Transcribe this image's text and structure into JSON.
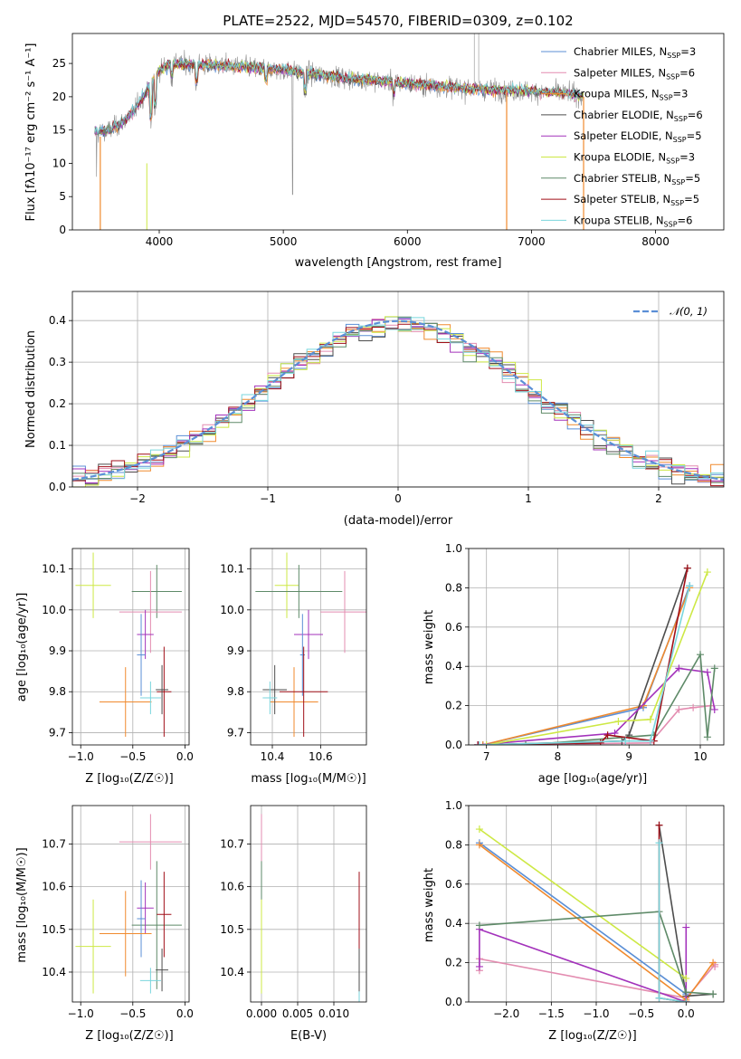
{
  "colors": {
    "Chabrier MILES": "#5b8fd6",
    "Salpeter MILES": "#e38cb0",
    "Kroupa MILES": "#f08a2e",
    "Chabrier ELODIE": "#4d4d4d",
    "Salpeter ELODIE": "#a332bb",
    "Kroupa ELODIE": "#cde844",
    "Chabrier STELIB": "#5e8a68",
    "Salpeter STELIB": "#a10f18",
    "Kroupa STELIB": "#79d6dd"
  },
  "chart_data": [
    {
      "id": "spectrum",
      "type": "line",
      "title": "PLATE=2522, MJD=54570, FIBERID=0309, z=0.102",
      "xlabel": "wavelength [Angstrom, rest frame]",
      "ylabel": "Flux [fλ10⁻¹⁷ erg cm⁻² s⁻¹ A⁻¹]",
      "xlim": [
        3300,
        8550
      ],
      "ylim": [
        0,
        29.5
      ],
      "xticks": [
        4000,
        5000,
        6000,
        7000,
        8000
      ],
      "yticks": [
        0,
        5,
        10,
        15,
        20,
        25
      ],
      "data_color": "#8c8c8c",
      "continuum": [
        [
          3480,
          14.5
        ],
        [
          3600,
          15
        ],
        [
          3700,
          16
        ],
        [
          3800,
          18
        ],
        [
          3900,
          21
        ],
        [
          4000,
          24
        ],
        [
          4100,
          25
        ],
        [
          4300,
          24.8
        ],
        [
          4600,
          24.6
        ],
        [
          5000,
          24.0
        ],
        [
          5500,
          22.8
        ],
        [
          6000,
          22.0
        ],
        [
          6500,
          21.2
        ],
        [
          7000,
          20.8
        ],
        [
          7400,
          20.3
        ]
      ],
      "legend": [
        {
          "label": "Chabrier MILES, N",
          "sub": "SSP",
          "rest": "=3",
          "color": "#5b8fd6"
        },
        {
          "label": "Salpeter MILES, N",
          "sub": "SSP",
          "rest": "=6",
          "color": "#e38cb0"
        },
        {
          "label": "Kroupa MILES, N",
          "sub": "SSP",
          "rest": "=3",
          "color": "#f08a2e"
        },
        {
          "label": "Chabrier ELODIE, N",
          "sub": "SSP",
          "rest": "=6",
          "color": "#4d4d4d"
        },
        {
          "label": "Salpeter ELODIE, N",
          "sub": "SSP",
          "rest": "=5",
          "color": "#a332bb"
        },
        {
          "label": "Kroupa ELODIE, N",
          "sub": "SSP",
          "rest": "=3",
          "color": "#cde844"
        },
        {
          "label": "Chabrier STELIB, N",
          "sub": "SSP",
          "rest": "=5",
          "color": "#5e8a68"
        },
        {
          "label": "Salpeter STELIB, N",
          "sub": "SSP",
          "rest": "=5",
          "color": "#a10f18"
        },
        {
          "label": "Kroupa STELIB, N",
          "sub": "SSP",
          "rest": "=6",
          "color": "#79d6dd"
        }
      ],
      "legend_placement": "top-right",
      "grid": false
    },
    {
      "id": "histogram",
      "type": "step",
      "xlabel": "(data-model)/error",
      "ylabel": "Normed distribution",
      "xlim": [
        -2.5,
        2.5
      ],
      "ylim": [
        0,
        0.47
      ],
      "xticks": [
        -2,
        -1,
        0,
        1,
        2
      ],
      "yticks": [
        0.0,
        0.1,
        0.2,
        0.3,
        0.4
      ],
      "bin_width": 0.1,
      "gaussian_label": "𝒩(0, 1)",
      "gaussian_color": "#5b8fd6",
      "legend_placement": "top-right",
      "grid": true
    },
    {
      "id": "age-vs-Z",
      "type": "errorbar",
      "xlabel": "Z [log₁₀(Z/Z☉)]",
      "ylabel": "age  [log₁₀(age/yr)]",
      "xlim": [
        -1.08,
        0.04
      ],
      "ylim": [
        9.67,
        10.15
      ],
      "xticks": [
        -1.0,
        -0.5,
        0.0
      ],
      "yticks": [
        9.7,
        9.8,
        9.9,
        10.0,
        10.1
      ],
      "points": [
        {
          "model": "Kroupa ELODIE",
          "x": -0.88,
          "xerr": 0.17,
          "y": 10.06,
          "yerr": 0.08
        },
        {
          "model": "Chabrier STELIB",
          "x": -0.27,
          "xerr": 0.24,
          "y": 10.045,
          "yerr": 0.065
        },
        {
          "model": "Salpeter MILES",
          "x": -0.33,
          "xerr": 0.3,
          "y": 9.995,
          "yerr": 0.1
        },
        {
          "model": "Salpeter ELODIE",
          "x": -0.38,
          "xerr": 0.08,
          "y": 9.94,
          "yerr": 0.06
        },
        {
          "model": "Chabrier MILES",
          "x": -0.42,
          "xerr": 0.04,
          "y": 9.89,
          "yerr": 0.1
        },
        {
          "model": "Kroupa MILES",
          "x": -0.57,
          "xerr": 0.25,
          "y": 9.775,
          "yerr": 0.085
        },
        {
          "model": "Salpeter STELIB",
          "x": -0.2,
          "xerr": 0.07,
          "y": 9.8,
          "yerr": 0.11
        },
        {
          "model": "Chabrier ELODIE",
          "x": -0.22,
          "xerr": 0.06,
          "y": 9.805,
          "yerr": 0.06
        },
        {
          "model": "Kroupa STELIB",
          "x": -0.33,
          "xerr": 0.1,
          "y": 9.785,
          "yerr": 0.04
        }
      ],
      "grid": true
    },
    {
      "id": "age-vs-mass",
      "type": "errorbar",
      "xlabel": "mass [log₁₀(M/M☉)]",
      "ylabel": "",
      "xlim": [
        10.31,
        10.79
      ],
      "ylim": [
        9.67,
        10.15
      ],
      "xticks": [
        10.4,
        10.6
      ],
      "yticks": [
        9.7,
        9.8,
        9.9,
        10.0,
        10.1
      ],
      "points": [
        {
          "model": "Kroupa ELODIE",
          "x": 10.46,
          "xerr": 0.05,
          "y": 10.06,
          "yerr": 0.08
        },
        {
          "model": "Chabrier STELIB",
          "x": 10.51,
          "xerr": 0.18,
          "y": 10.045,
          "yerr": 0.065
        },
        {
          "model": "Salpeter MILES",
          "x": 10.7,
          "xerr": 0.1,
          "y": 9.995,
          "yerr": 0.1
        },
        {
          "model": "Salpeter ELODIE",
          "x": 10.55,
          "xerr": 0.06,
          "y": 9.94,
          "yerr": 0.06
        },
        {
          "model": "Chabrier MILES",
          "x": 10.525,
          "xerr": 0.01,
          "y": 9.89,
          "yerr": 0.1
        },
        {
          "model": "Kroupa MILES",
          "x": 10.49,
          "xerr": 0.1,
          "y": 9.775,
          "yerr": 0.085
        },
        {
          "model": "Salpeter STELIB",
          "x": 10.53,
          "xerr": 0.1,
          "y": 9.8,
          "yerr": 0.11
        },
        {
          "model": "Chabrier ELODIE",
          "x": 10.41,
          "xerr": 0.05,
          "y": 9.805,
          "yerr": 0.06
        },
        {
          "model": "Kroupa STELIB",
          "x": 10.39,
          "xerr": 0.03,
          "y": 9.785,
          "yerr": 0.04
        }
      ],
      "grid": true
    },
    {
      "id": "weight-vs-age",
      "type": "line",
      "xlabel": "age  [log₁₀(age/yr)]",
      "ylabel": "mass weight",
      "xlim": [
        6.75,
        10.33
      ],
      "ylim": [
        0,
        1
      ],
      "xticks": [
        7,
        8,
        9,
        10
      ],
      "yticks": [
        0.0,
        0.2,
        0.4,
        0.6,
        0.8,
        1.0
      ],
      "series": [
        {
          "model": "Chabrier MILES",
          "x": [
            6.95,
            9.2,
            9.85
          ],
          "y": [
            0.0,
            0.19,
            0.81
          ]
        },
        {
          "model": "Salpeter MILES",
          "x": [
            6.88,
            9.3,
            9.7,
            9.9,
            10.15
          ],
          "y": [
            0.0,
            0.01,
            0.18,
            0.19,
            0.2
          ]
        },
        {
          "model": "Kroupa MILES",
          "x": [
            6.95,
            9.2,
            9.85
          ],
          "y": [
            0.0,
            0.2,
            0.8
          ]
        },
        {
          "model": "Chabrier ELODIE",
          "x": [
            6.88,
            8.9,
            9.0,
            9.82
          ],
          "y": [
            0.0,
            0.02,
            0.05,
            0.9
          ]
        },
        {
          "model": "Salpeter ELODIE",
          "x": [
            6.88,
            8.8,
            9.7,
            10.1,
            10.2
          ],
          "y": [
            0.0,
            0.06,
            0.39,
            0.37,
            0.18
          ]
        },
        {
          "model": "Kroupa ELODIE",
          "x": [
            7.0,
            8.85,
            9.3,
            10.1
          ],
          "y": [
            0.0,
            0.12,
            0.13,
            0.88
          ]
        },
        {
          "model": "Chabrier STELIB",
          "x": [
            7.55,
            9.35,
            10.0,
            10.1,
            10.2
          ],
          "y": [
            0.0,
            0.05,
            0.46,
            0.04,
            0.39
          ]
        },
        {
          "model": "Salpeter STELIB",
          "x": [
            6.88,
            8.6,
            8.7,
            9.35,
            9.82
          ],
          "y": [
            0.0,
            0.01,
            0.05,
            0.02,
            0.9
          ]
        },
        {
          "model": "Kroupa STELIB",
          "x": [
            6.9,
            8.95,
            9.3,
            9.85
          ],
          "y": [
            0.0,
            0.02,
            0.02,
            0.81
          ]
        }
      ],
      "grid": true
    },
    {
      "id": "mass-vs-Z",
      "type": "errorbar",
      "xlabel": "Z [log₁₀(Z/Z☉)]",
      "ylabel": "mass [log₁₀(M/M☉)]",
      "xlim": [
        -1.08,
        0.04
      ],
      "ylim": [
        10.33,
        10.79
      ],
      "xticks": [
        -1.0,
        -0.5,
        0.0
      ],
      "yticks": [
        10.4,
        10.5,
        10.6,
        10.7
      ],
      "points": [
        {
          "model": "Kroupa ELODIE",
          "x": -0.88,
          "xerr": 0.17,
          "y": 10.46,
          "yerr": 0.11
        },
        {
          "model": "Chabrier STELIB",
          "x": -0.27,
          "xerr": 0.24,
          "y": 10.51,
          "yerr": 0.15
        },
        {
          "model": "Salpeter MILES",
          "x": -0.33,
          "xerr": 0.3,
          "y": 10.705,
          "yerr": 0.065
        },
        {
          "model": "Salpeter ELODIE",
          "x": -0.38,
          "xerr": 0.08,
          "y": 10.55,
          "yerr": 0.06
        },
        {
          "model": "Chabrier MILES",
          "x": -0.42,
          "xerr": 0.04,
          "y": 10.525,
          "yerr": 0.09
        },
        {
          "model": "Kroupa MILES",
          "x": -0.57,
          "xerr": 0.25,
          "y": 10.49,
          "yerr": 0.1
        },
        {
          "model": "Salpeter STELIB",
          "x": -0.2,
          "xerr": 0.07,
          "y": 10.535,
          "yerr": 0.1
        },
        {
          "model": "Chabrier ELODIE",
          "x": -0.22,
          "xerr": 0.06,
          "y": 10.405,
          "yerr": 0.05
        },
        {
          "model": "Kroupa STELIB",
          "x": -0.33,
          "xerr": 0.1,
          "y": 10.38,
          "yerr": 0.03
        }
      ],
      "grid": true
    },
    {
      "id": "mass-vs-EBV",
      "type": "errorbar",
      "xlabel": "E(B-V)",
      "ylabel": "",
      "xlim": [
        -0.0015,
        0.0145
      ],
      "ylim": [
        10.33,
        10.79
      ],
      "xticks": [
        0.0,
        0.005,
        0.01
      ],
      "ytick_labels_fmt": "0.000",
      "yticks": [
        10.4,
        10.5,
        10.6,
        10.7
      ],
      "points": [
        {
          "model": "Salpeter MILES",
          "x": 0.0,
          "xerr": 0.0,
          "y": 10.705,
          "yerr": 0.065
        },
        {
          "model": "Chabrier STELIB",
          "x": 0.0,
          "xerr": 0.0,
          "y": 10.51,
          "yerr": 0.15
        },
        {
          "model": "Kroupa ELODIE",
          "x": 0.0,
          "xerr": 0.0,
          "y": 10.46,
          "yerr": 0.11
        },
        {
          "model": "Salpeter STELIB",
          "x": 0.0135,
          "xerr": 0.0,
          "y": 10.535,
          "yerr": 0.1
        },
        {
          "model": "Kroupa STELIB",
          "x": 0.0135,
          "xerr": 0.0,
          "y": 10.38,
          "yerr": 0.05
        },
        {
          "model": "Chabrier ELODIE",
          "x": 0.0135,
          "xerr": 0.0,
          "y": 10.405,
          "yerr": 0.05
        }
      ],
      "grid": true
    },
    {
      "id": "weight-vs-Z",
      "type": "line",
      "xlabel": "Z [log₁₀(Z/Z☉)]",
      "ylabel": "mass weight",
      "xlim": [
        -2.42,
        0.42
      ],
      "ylim": [
        0,
        1
      ],
      "xticks": [
        -2.0,
        -1.5,
        -1.0,
        -0.5,
        0.0
      ],
      "yticks": [
        0.0,
        0.2,
        0.4,
        0.6,
        0.8,
        1.0
      ],
      "series": [
        {
          "model": "Chabrier MILES",
          "x": [
            -2.3,
            0.0,
            0.0
          ],
          "y": [
            0.81,
            0.04,
            0.0
          ]
        },
        {
          "model": "Salpeter MILES",
          "x": [
            -2.3,
            -2.3,
            0.0,
            0.32,
            0.32
          ],
          "y": [
            0.16,
            0.22,
            0.02,
            0.19,
            0.18
          ]
        },
        {
          "model": "Kroupa MILES",
          "x": [
            -2.3,
            0.0,
            0.3
          ],
          "y": [
            0.8,
            0.01,
            0.2
          ]
        },
        {
          "model": "Chabrier ELODIE",
          "x": [
            -0.3,
            0.0,
            0.3
          ],
          "y": [
            0.9,
            0.03,
            0.04
          ]
        },
        {
          "model": "Salpeter ELODIE",
          "x": [
            -2.3,
            -2.3,
            0.0,
            0.0
          ],
          "y": [
            0.18,
            0.37,
            0.0,
            0.38
          ]
        },
        {
          "model": "Kroupa ELODIE",
          "x": [
            -2.3,
            0.0
          ],
          "y": [
            0.88,
            0.12
          ]
        },
        {
          "model": "Chabrier STELIB",
          "x": [
            -2.3,
            -0.3,
            0.0,
            0.3
          ],
          "y": [
            0.39,
            0.46,
            0.05,
            0.04
          ]
        },
        {
          "model": "Salpeter STELIB",
          "x": [
            -0.3,
            -0.3,
            0.0
          ],
          "y": [
            0.9,
            0.02,
            0.0
          ]
        },
        {
          "model": "Kroupa STELIB",
          "x": [
            -0.3,
            -0.3,
            0.0
          ],
          "y": [
            0.81,
            0.02,
            0.0
          ]
        }
      ],
      "grid": true
    }
  ]
}
